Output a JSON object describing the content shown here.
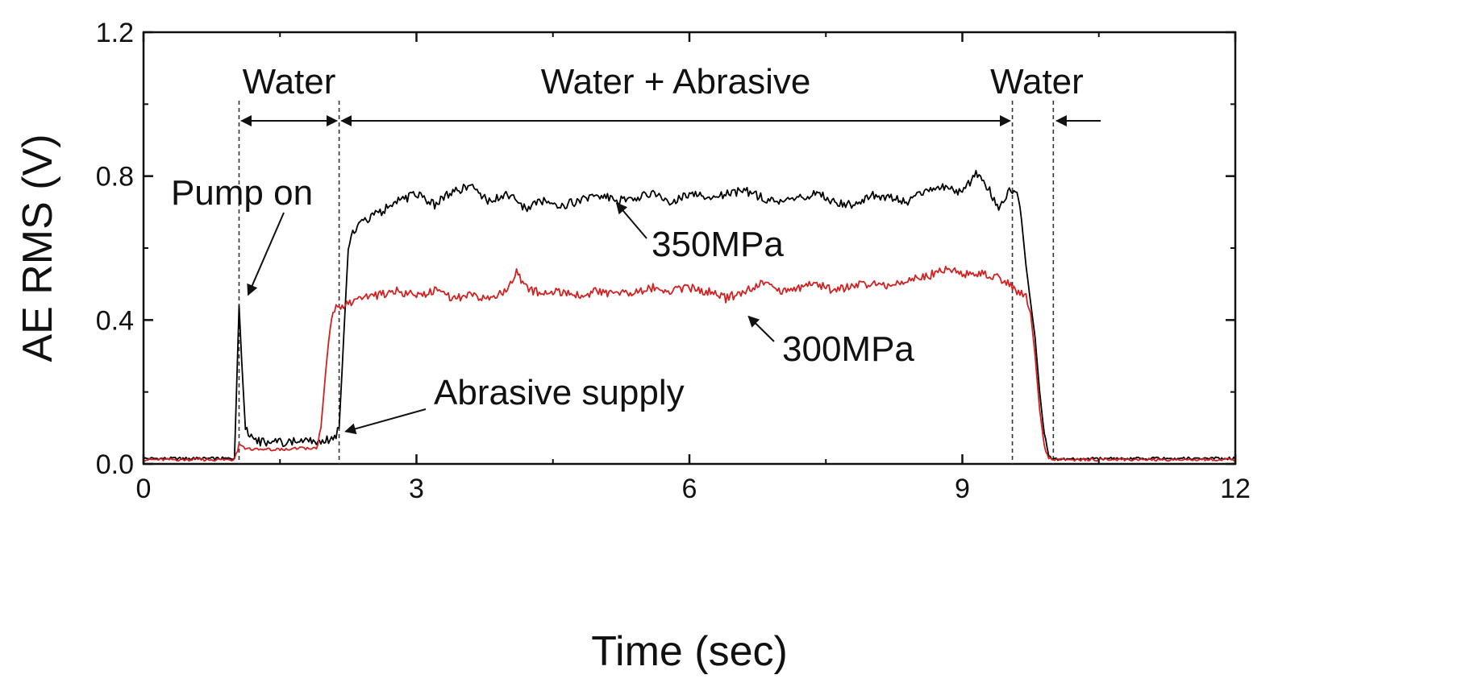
{
  "chart_data": {
    "type": "line",
    "title": "",
    "xlabel": "Time (sec)",
    "ylabel": "AE RMS (V)",
    "xlim": [
      0,
      12
    ],
    "ylim": [
      0,
      1.2
    ],
    "x_ticks": [
      0,
      3,
      6,
      9,
      12
    ],
    "x_tick_labels": [
      "0",
      "3",
      "6",
      "9",
      "12"
    ],
    "y_ticks": [
      0.0,
      0.4,
      0.8,
      1.2
    ],
    "y_tick_labels": [
      "0.0",
      "0.4",
      "0.8",
      "1.2"
    ],
    "grid": false,
    "series": [
      {
        "name": "350MPa",
        "color": "#000000",
        "x": [
          0,
          0.5,
          1.0,
          1.05,
          1.08,
          1.12,
          1.2,
          1.3,
          1.5,
          1.8,
          2.0,
          2.1,
          2.15,
          2.2,
          2.25,
          2.3,
          2.4,
          2.6,
          2.8,
          3.0,
          3.2,
          3.4,
          3.6,
          3.8,
          4.0,
          4.2,
          4.4,
          4.6,
          4.8,
          5.0,
          5.2,
          5.4,
          5.6,
          5.8,
          6.0,
          6.2,
          6.4,
          6.6,
          6.8,
          7.0,
          7.2,
          7.4,
          7.6,
          7.8,
          8.0,
          8.2,
          8.4,
          8.6,
          8.8,
          9.0,
          9.15,
          9.3,
          9.4,
          9.5,
          9.6,
          9.65,
          9.7,
          9.75,
          9.8,
          9.85,
          9.9,
          9.95,
          10.0,
          10.5,
          11.0,
          11.5,
          12.0
        ],
        "y": [
          0.015,
          0.015,
          0.015,
          0.44,
          0.28,
          0.1,
          0.065,
          0.06,
          0.06,
          0.065,
          0.065,
          0.07,
          0.1,
          0.35,
          0.6,
          0.64,
          0.67,
          0.7,
          0.73,
          0.75,
          0.72,
          0.76,
          0.77,
          0.73,
          0.75,
          0.71,
          0.73,
          0.72,
          0.73,
          0.75,
          0.73,
          0.74,
          0.75,
          0.73,
          0.75,
          0.74,
          0.75,
          0.76,
          0.74,
          0.73,
          0.74,
          0.75,
          0.73,
          0.72,
          0.75,
          0.74,
          0.73,
          0.76,
          0.77,
          0.75,
          0.81,
          0.76,
          0.7,
          0.76,
          0.75,
          0.68,
          0.55,
          0.45,
          0.35,
          0.2,
          0.08,
          0.02,
          0.012,
          0.015,
          0.015,
          0.015,
          0.015
        ]
      },
      {
        "name": "300MPa",
        "color": "#d42020",
        "x": [
          0,
          0.5,
          1.0,
          1.05,
          1.1,
          1.2,
          1.5,
          1.9,
          1.95,
          2.0,
          2.05,
          2.1,
          2.2,
          2.3,
          2.4,
          2.6,
          2.8,
          3.0,
          3.2,
          3.4,
          3.6,
          3.8,
          4.0,
          4.1,
          4.2,
          4.4,
          4.6,
          4.8,
          5.0,
          5.2,
          5.4,
          5.6,
          5.8,
          6.0,
          6.2,
          6.4,
          6.6,
          6.8,
          7.0,
          7.2,
          7.4,
          7.6,
          7.8,
          8.0,
          8.2,
          8.4,
          8.6,
          8.8,
          9.0,
          9.2,
          9.4,
          9.5,
          9.6,
          9.7,
          9.75,
          9.8,
          9.85,
          9.9,
          9.95,
          10.0,
          10.5,
          11.0,
          11.5,
          12.0
        ],
        "y": [
          0.012,
          0.012,
          0.012,
          0.05,
          0.045,
          0.04,
          0.04,
          0.045,
          0.1,
          0.25,
          0.38,
          0.43,
          0.44,
          0.45,
          0.46,
          0.47,
          0.48,
          0.47,
          0.48,
          0.46,
          0.47,
          0.46,
          0.48,
          0.53,
          0.49,
          0.47,
          0.48,
          0.47,
          0.48,
          0.47,
          0.48,
          0.49,
          0.48,
          0.49,
          0.48,
          0.46,
          0.48,
          0.5,
          0.48,
          0.49,
          0.5,
          0.48,
          0.5,
          0.5,
          0.49,
          0.51,
          0.52,
          0.54,
          0.53,
          0.53,
          0.52,
          0.5,
          0.48,
          0.47,
          0.42,
          0.3,
          0.15,
          0.05,
          0.015,
          0.012,
          0.012,
          0.012,
          0.012,
          0.012
        ]
      }
    ],
    "phase_markers": [
      1.05,
      2.15,
      9.55,
      10.0
    ],
    "phases": [
      {
        "label": "Water",
        "x_start": 1.05,
        "x_end": 2.15
      },
      {
        "label": "Water + Abrasive",
        "x_start": 2.15,
        "x_end": 9.55
      },
      {
        "label": "Water",
        "x_start": 10.0,
        "x_end": 10.45
      }
    ],
    "annotations": [
      {
        "text": "Pump on",
        "target_x": 1.15,
        "target_y": 0.47
      },
      {
        "text": "Abrasive supply",
        "target_x": 2.22,
        "target_y": 0.09
      },
      {
        "text": "350MPa",
        "target_x": 5.2,
        "target_y": 0.725
      },
      {
        "text": "300MPa",
        "target_x": 6.65,
        "target_y": 0.41
      }
    ]
  }
}
